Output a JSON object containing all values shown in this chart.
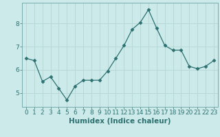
{
  "x": [
    0,
    1,
    2,
    3,
    4,
    5,
    6,
    7,
    8,
    9,
    10,
    11,
    12,
    13,
    14,
    15,
    16,
    17,
    18,
    19,
    20,
    21,
    22,
    23
  ],
  "y": [
    6.5,
    6.4,
    5.5,
    5.7,
    5.2,
    4.7,
    5.3,
    5.55,
    5.55,
    5.55,
    5.95,
    6.5,
    7.05,
    7.75,
    8.05,
    8.6,
    7.8,
    7.05,
    6.85,
    6.85,
    6.15,
    6.05,
    6.15,
    6.4
  ],
  "xlabel": "Humidex (Indice chaleur)",
  "xlim": [
    -0.5,
    23.5
  ],
  "ylim": [
    4.4,
    8.9
  ],
  "yticks": [
    5,
    6,
    7,
    8
  ],
  "xticks": [
    0,
    1,
    2,
    3,
    4,
    5,
    6,
    7,
    8,
    9,
    10,
    11,
    12,
    13,
    14,
    15,
    16,
    17,
    18,
    19,
    20,
    21,
    22,
    23
  ],
  "line_color": "#2d7070",
  "marker": "D",
  "marker_size": 2.5,
  "bg_color": "#cceaea",
  "grid_color": "#b8d8d8",
  "axis_color": "#7aacac",
  "tick_label_color": "#2d7070",
  "xlabel_color": "#2d7070",
  "xlabel_fontsize": 7.5,
  "tick_fontsize": 6.5
}
